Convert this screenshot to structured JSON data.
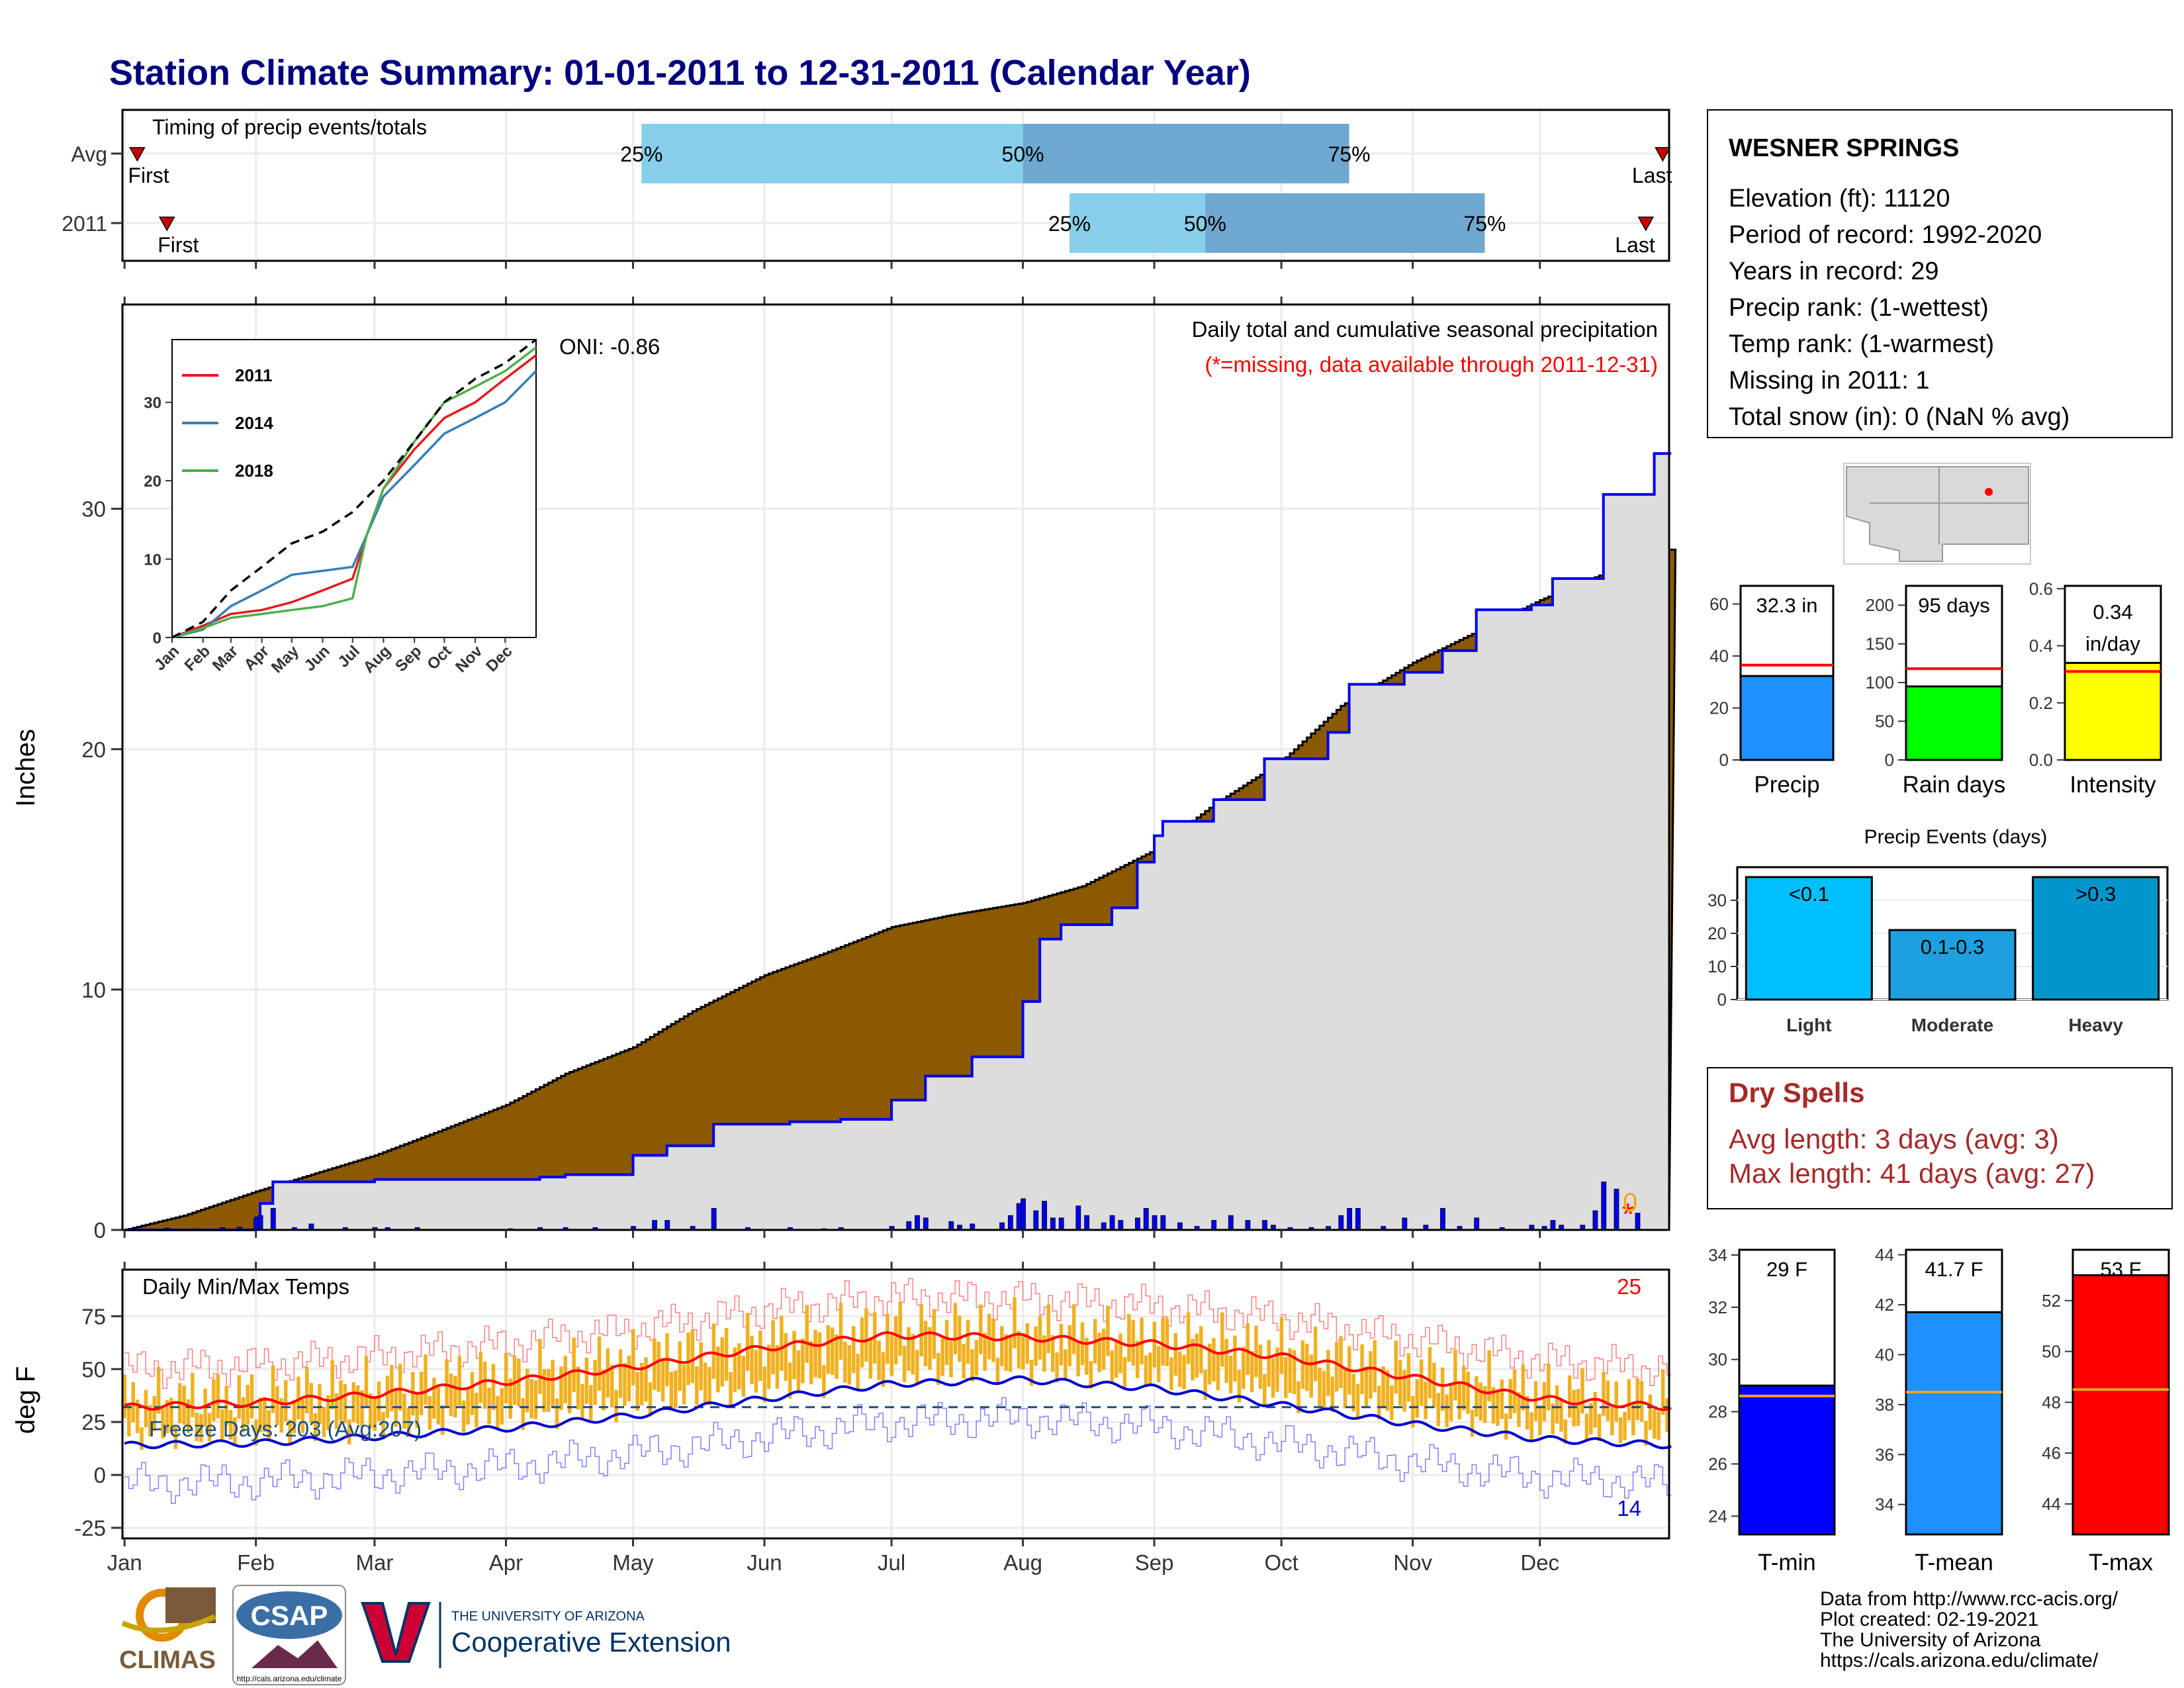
{
  "title": "Station Climate Summary: 01-01-2011 to 12-31-2011 (Calendar Year)",
  "months": [
    "Jan",
    "Feb",
    "Mar",
    "Apr",
    "May",
    "Jun",
    "Jul",
    "Aug",
    "Sep",
    "Oct",
    "Nov",
    "Dec"
  ],
  "month_starts": [
    1,
    32,
    60,
    91,
    121,
    152,
    182,
    213,
    244,
    274,
    305,
    335
  ],
  "timing": {
    "label": "Timing of precip events/totals",
    "rows": [
      {
        "label": "Avg",
        "first_doy": 4,
        "last_doy": 364,
        "first_label": "First",
        "last_label": "Last",
        "q25": 123,
        "q50": 213,
        "q75": 290,
        "p25": "25%",
        "p50": "50%",
        "p75": "75%"
      },
      {
        "label": "2011",
        "first_doy": 11,
        "last_doy": 360,
        "first_label": "First",
        "last_label": "Last",
        "q25": 224,
        "q50": 256,
        "q75": 322,
        "p25": "25%",
        "p50": "50%",
        "p75": "75%"
      }
    ],
    "colors": {
      "early": "#87ceeb",
      "late": "#6fa8d0",
      "marker": "#cc0000"
    }
  },
  "precip": {
    "ylabel": "Inches",
    "title": "Daily total and cumulative seasonal precipitation",
    "note": "(*=missing, data available through 2011-12-31)",
    "oni": "ONI: -0.86",
    "missing_mark": "*",
    "zero_mark": "0",
    "yticks": [
      0,
      10,
      20,
      30
    ],
    "ylim": [
      0,
      38.5
    ],
    "avg_cumulative": [
      [
        1,
        0
      ],
      [
        15,
        0.6
      ],
      [
        32,
        1.6
      ],
      [
        45,
        2.3
      ],
      [
        60,
        3.1
      ],
      [
        75,
        4.1
      ],
      [
        91,
        5.2
      ],
      [
        105,
        6.5
      ],
      [
        121,
        7.6
      ],
      [
        135,
        9.1
      ],
      [
        152,
        10.6
      ],
      [
        166,
        11.5
      ],
      [
        182,
        12.6
      ],
      [
        196,
        13.1
      ],
      [
        213,
        13.6
      ],
      [
        227,
        14.3
      ],
      [
        244,
        15.8
      ],
      [
        258,
        17.7
      ],
      [
        274,
        19.5
      ],
      [
        288,
        21.8
      ],
      [
        305,
        23.6
      ],
      [
        319,
        24.8
      ],
      [
        335,
        26.2
      ],
      [
        350,
        27.3
      ],
      [
        365,
        28.3
      ],
      [
        366,
        28.3
      ]
    ],
    "cumulative_2011": [
      [
        1,
        0
      ],
      [
        32,
        0.5
      ],
      [
        33,
        1.1
      ],
      [
        36,
        2.0
      ],
      [
        60,
        2.1
      ],
      [
        99,
        2.2
      ],
      [
        105,
        2.3
      ],
      [
        121,
        3.1
      ],
      [
        129,
        3.5
      ],
      [
        140,
        4.4
      ],
      [
        158,
        4.5
      ],
      [
        170,
        4.6
      ],
      [
        182,
        5.4
      ],
      [
        190,
        6.4
      ],
      [
        201,
        7.2
      ],
      [
        213,
        9.5
      ],
      [
        217,
        12.1
      ],
      [
        222,
        12.7
      ],
      [
        234,
        13.4
      ],
      [
        240,
        15.3
      ],
      [
        244,
        16.4
      ],
      [
        246,
        17.0
      ],
      [
        258,
        17.9
      ],
      [
        270,
        19.6
      ],
      [
        285,
        20.7
      ],
      [
        290,
        22.7
      ],
      [
        303,
        23.2
      ],
      [
        312,
        24.1
      ],
      [
        320,
        25.8
      ],
      [
        333,
        26.0
      ],
      [
        338,
        27.1
      ],
      [
        350,
        30.6
      ],
      [
        362,
        32.3
      ],
      [
        366,
        32.3
      ]
    ],
    "daily_bars": [
      [
        11,
        0.08
      ],
      [
        18,
        0.05
      ],
      [
        24,
        0.1
      ],
      [
        28,
        0.12
      ],
      [
        32,
        0.5
      ],
      [
        33,
        0.6
      ],
      [
        36,
        0.9
      ],
      [
        41,
        0.1
      ],
      [
        45,
        0.25
      ],
      [
        53,
        0.1
      ],
      [
        60,
        0.1
      ],
      [
        63,
        0.1
      ],
      [
        70,
        0.1
      ],
      [
        92,
        0.05
      ],
      [
        99,
        0.1
      ],
      [
        105,
        0.1
      ],
      [
        112,
        0.1
      ],
      [
        121,
        0.15
      ],
      [
        126,
        0.4
      ],
      [
        129,
        0.4
      ],
      [
        135,
        0.15
      ],
      [
        140,
        0.9
      ],
      [
        148,
        0.1
      ],
      [
        158,
        0.1
      ],
      [
        166,
        0.05
      ],
      [
        170,
        0.1
      ],
      [
        182,
        0.15
      ],
      [
        186,
        0.35
      ],
      [
        188,
        0.6
      ],
      [
        190,
        0.5
      ],
      [
        196,
        0.35
      ],
      [
        198,
        0.2
      ],
      [
        201,
        0.25
      ],
      [
        208,
        0.3
      ],
      [
        210,
        0.6
      ],
      [
        212,
        1.1
      ],
      [
        213,
        1.3
      ],
      [
        216,
        0.8
      ],
      [
        218,
        1.2
      ],
      [
        220,
        0.5
      ],
      [
        222,
        0.5
      ],
      [
        226,
        1.0
      ],
      [
        228,
        0.6
      ],
      [
        232,
        0.3
      ],
      [
        234,
        0.6
      ],
      [
        236,
        0.4
      ],
      [
        240,
        0.5
      ],
      [
        242,
        0.9
      ],
      [
        244,
        0.6
      ],
      [
        246,
        0.6
      ],
      [
        250,
        0.3
      ],
      [
        254,
        0.15
      ],
      [
        258,
        0.4
      ],
      [
        262,
        0.6
      ],
      [
        266,
        0.4
      ],
      [
        270,
        0.4
      ],
      [
        272,
        0.2
      ],
      [
        276,
        0.1
      ],
      [
        281,
        0.1
      ],
      [
        285,
        0.15
      ],
      [
        288,
        0.6
      ],
      [
        290,
        0.9
      ],
      [
        292,
        0.9
      ],
      [
        298,
        0.15
      ],
      [
        303,
        0.5
      ],
      [
        308,
        0.2
      ],
      [
        312,
        0.9
      ],
      [
        316,
        0.15
      ],
      [
        320,
        0.5
      ],
      [
        326,
        0.1
      ],
      [
        333,
        0.2
      ],
      [
        336,
        0.15
      ],
      [
        338,
        0.4
      ],
      [
        340,
        0.2
      ],
      [
        345,
        0.2
      ],
      [
        348,
        0.8
      ],
      [
        350,
        2.0
      ],
      [
        353,
        1.7
      ],
      [
        358,
        0.7
      ]
    ],
    "series_colors": {
      "avg": "#8B5A00",
      "obs": "#0000ee",
      "bars": "#0000ee",
      "fill": "#dddddd"
    }
  },
  "inset": {
    "series": [
      {
        "name": "2011",
        "color": "#e41a1c",
        "points": [
          [
            1,
            0
          ],
          [
            32,
            1.5
          ],
          [
            60,
            3
          ],
          [
            91,
            3.5
          ],
          [
            121,
            4.5
          ],
          [
            152,
            6
          ],
          [
            182,
            7.5
          ],
          [
            196,
            13
          ],
          [
            213,
            19
          ],
          [
            244,
            24
          ],
          [
            274,
            28
          ],
          [
            305,
            30
          ],
          [
            335,
            33
          ],
          [
            366,
            36
          ]
        ]
      },
      {
        "name": "2014",
        "color": "#377eb8",
        "points": [
          [
            1,
            0
          ],
          [
            32,
            1
          ],
          [
            60,
            4
          ],
          [
            91,
            6
          ],
          [
            121,
            8
          ],
          [
            152,
            8.5
          ],
          [
            182,
            9
          ],
          [
            196,
            13
          ],
          [
            213,
            18
          ],
          [
            244,
            22
          ],
          [
            274,
            26
          ],
          [
            305,
            28
          ],
          [
            335,
            30
          ],
          [
            366,
            34
          ]
        ]
      },
      {
        "name": "2018",
        "color": "#4daf4a",
        "points": [
          [
            1,
            0
          ],
          [
            32,
            1.2
          ],
          [
            60,
            2.5
          ],
          [
            91,
            3
          ],
          [
            121,
            3.5
          ],
          [
            152,
            4
          ],
          [
            182,
            5
          ],
          [
            196,
            13
          ],
          [
            213,
            19
          ],
          [
            244,
            25
          ],
          [
            274,
            30
          ],
          [
            305,
            32
          ],
          [
            335,
            34
          ],
          [
            366,
            37
          ]
        ]
      },
      {
        "name": "",
        "color": "#000000",
        "dashed": true,
        "points": [
          [
            1,
            0
          ],
          [
            32,
            2
          ],
          [
            60,
            6
          ],
          [
            91,
            9
          ],
          [
            121,
            12
          ],
          [
            152,
            13.5
          ],
          [
            182,
            16
          ],
          [
            213,
            20
          ],
          [
            244,
            25
          ],
          [
            274,
            30
          ],
          [
            305,
            33
          ],
          [
            335,
            35
          ],
          [
            366,
            38
          ]
        ]
      }
    ],
    "yticks": [
      0,
      10,
      20,
      30
    ],
    "ylim": [
      0,
      38
    ],
    "months": [
      "Jan",
      "Feb",
      "Mar",
      "Apr",
      "May",
      "Jun",
      "Jul",
      "Aug",
      "Sep",
      "Oct",
      "Nov",
      "Dec"
    ]
  },
  "temps": {
    "ylabel": "deg F",
    "title": "Daily Min/Max Temps",
    "freeze": "Freeze Days: 203 (Avg:207)",
    "hot_count": "25",
    "cold_count": "14",
    "yticks": [
      75,
      50,
      25,
      0,
      -25
    ],
    "ylim": [
      -30,
      97
    ],
    "freeze_line": 32,
    "avg_max": [
      [
        1,
        32
      ],
      [
        32,
        34
      ],
      [
        60,
        38
      ],
      [
        91,
        44
      ],
      [
        121,
        51
      ],
      [
        152,
        60
      ],
      [
        182,
        66
      ],
      [
        213,
        65
      ],
      [
        244,
        62
      ],
      [
        274,
        56
      ],
      [
        305,
        46
      ],
      [
        335,
        36
      ],
      [
        366,
        32
      ]
    ],
    "avg_min": [
      [
        1,
        14
      ],
      [
        32,
        15
      ],
      [
        60,
        18
      ],
      [
        91,
        22
      ],
      [
        121,
        28
      ],
      [
        152,
        36
      ],
      [
        182,
        43
      ],
      [
        213,
        45
      ],
      [
        244,
        41
      ],
      [
        274,
        33
      ],
      [
        305,
        24
      ],
      [
        335,
        17
      ],
      [
        366,
        14
      ]
    ],
    "colors": {
      "avg_max": "#ff0000",
      "avg_min": "#0000cc",
      "bars": "#f0b020",
      "freeze": "#1a4e7a"
    }
  },
  "station": {
    "name": "WESNER SPRINGS",
    "lines": [
      "Elevation (ft): 11120",
      "Period of record: 1992-2020",
      "Years in record: 29",
      "Precip rank:  (1-wettest)",
      "Temp rank:  (1-warmest)",
      "Missing in 2011: 1",
      "Total snow (in): 0 (NaN % avg)"
    ]
  },
  "summary_bars": [
    {
      "label": "Precip",
      "value": 32.3,
      "text": "32.3 in",
      "avg": 36.5,
      "ylim": [
        0,
        67
      ],
      "yticks": [
        0,
        20,
        40,
        60
      ],
      "color": "#1e90ff"
    },
    {
      "label": "Rain days",
      "value": 95,
      "text": "95 days",
      "avg": 118,
      "ylim": [
        0,
        225
      ],
      "yticks": [
        0,
        50,
        100,
        150,
        200
      ],
      "color": "#00ff00"
    },
    {
      "label": "Intensity",
      "value": 0.34,
      "text": "0.34 in/day",
      "avg": 0.31,
      "ylim": [
        0,
        0.61
      ],
      "yticks": [
        0.0,
        0.2,
        0.4,
        0.6
      ],
      "color": "#ffff00"
    }
  ],
  "events": {
    "title": "Precip Events (days)",
    "categories": [
      "Light",
      "Moderate",
      "Heavy"
    ],
    "values": [
      37,
      21,
      37
    ],
    "labels": [
      "<0.1",
      "0.1-0.3",
      ">0.3"
    ],
    "colors": [
      "#00bfff",
      "#1ea0e0",
      "#0096cc"
    ],
    "ylim": [
      0,
      40
    ],
    "yticks": [
      0,
      10,
      20,
      30
    ]
  },
  "dry_spells": {
    "title": "Dry Spells",
    "avg": "Avg length: 3 days (avg: 3)",
    "max": "Max length: 41 days (avg: 27)"
  },
  "temp_bars": [
    {
      "label": "T-min",
      "value": 29,
      "text": "29 F",
      "avg": 28.6,
      "ylim": [
        23.3,
        34.2
      ],
      "yticks": [
        24,
        26,
        28,
        30,
        32,
        34
      ],
      "color": "#0000ff"
    },
    {
      "label": "T-mean",
      "value": 41.7,
      "text": "41.7 F",
      "avg": 38.5,
      "ylim": [
        32.8,
        44.2
      ],
      "yticks": [
        34,
        36,
        38,
        40,
        42,
        44
      ],
      "color": "#1e90ff"
    },
    {
      "label": "T-max",
      "value": 53,
      "text": "53 F",
      "avg": 48.5,
      "ylim": [
        42.8,
        54
      ],
      "yticks": [
        44,
        46,
        48,
        50,
        52
      ],
      "color": "#ff0000"
    }
  ],
  "credits": [
    "Data from http://www.rcc-acis.org/",
    "Plot created: 02-19-2021",
    "The University of Arizona",
    "https://cals.arizona.edu/climate/"
  ],
  "logos": {
    "climas": "CLIMAS",
    "csap": "CSAP",
    "csap_url": "http://cals.arizona.edu/climate",
    "ua_line1": "THE UNIVERSITY OF ARIZONA",
    "ua_line2": "Cooperative Extension"
  }
}
